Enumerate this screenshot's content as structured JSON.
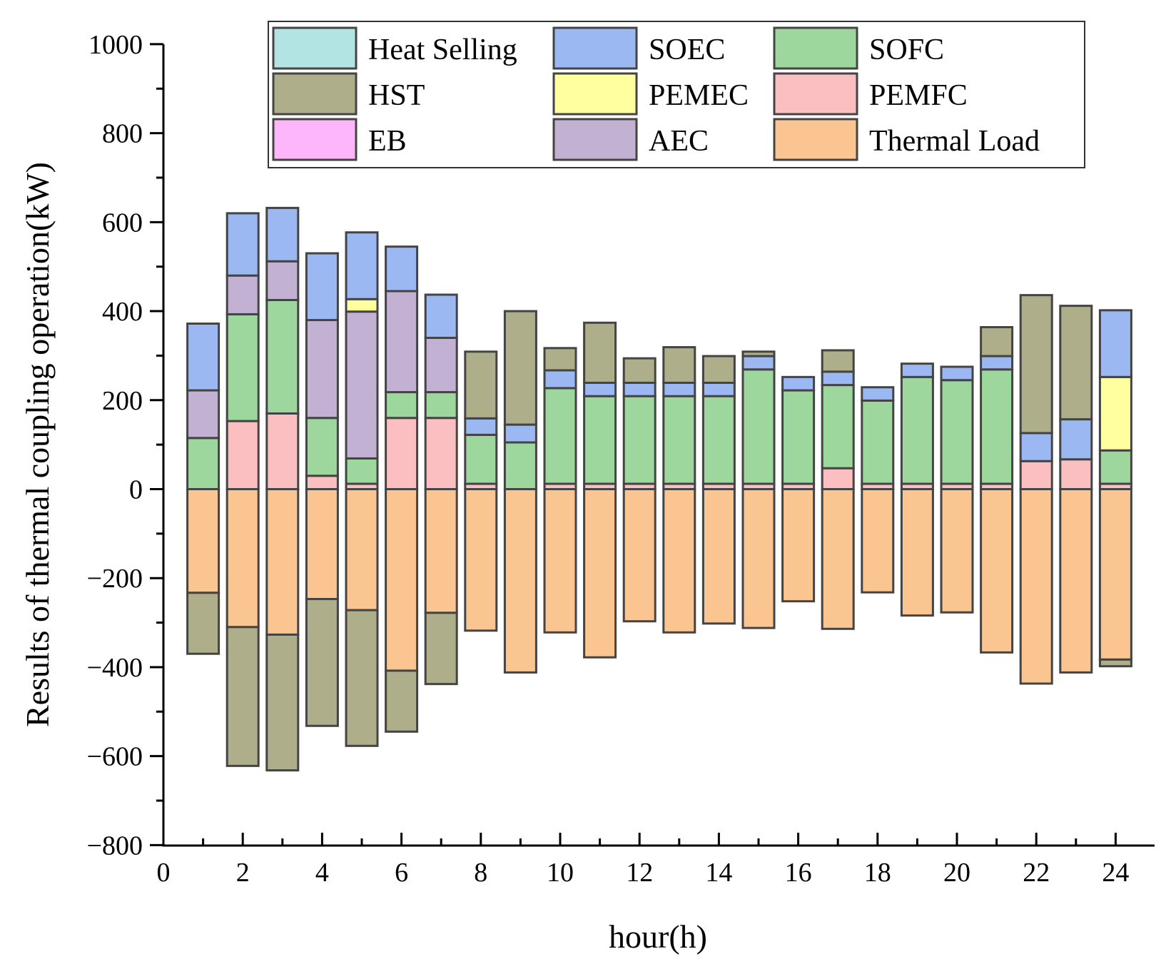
{
  "chart_data": {
    "type": "bar",
    "stacked": true,
    "title": "",
    "xlabel": "hour(h)",
    "ylabel": "Results of  thermal coupling operation(kW)",
    "xlim": [
      0,
      25
    ],
    "ylim": [
      -800,
      1000
    ],
    "x_ticks": [
      0,
      2,
      4,
      6,
      8,
      10,
      12,
      14,
      16,
      18,
      20,
      22,
      24
    ],
    "y_ticks": [
      -800,
      -600,
      -400,
      -200,
      0,
      200,
      400,
      600,
      800,
      1000
    ],
    "y_tick_labels": [
      "−800",
      "−600",
      "−400",
      "−200",
      "0",
      "200",
      "400",
      "600",
      "800",
      "1000"
    ],
    "legend_position": "top",
    "categories": [
      1,
      2,
      3,
      4,
      5,
      6,
      7,
      8,
      9,
      10,
      11,
      12,
      13,
      14,
      15,
      16,
      17,
      18,
      19,
      20,
      21,
      22,
      23,
      24
    ],
    "series": [
      {
        "name": "Heat Selling",
        "color": "#b3e4e4",
        "values": [
          0,
          0,
          0,
          0,
          0,
          0,
          0,
          0,
          0,
          0,
          0,
          0,
          0,
          0,
          0,
          0,
          0,
          0,
          0,
          0,
          0,
          0,
          0,
          0
        ]
      },
      {
        "name": "HST",
        "color": "#aeae8a",
        "values": [
          -137,
          -312,
          -305,
          -285,
          -305,
          -137,
          -160,
          150,
          255,
          50,
          135,
          55,
          80,
          60,
          10,
          0,
          48,
          0,
          0,
          0,
          65,
          310,
          255,
          -15
        ]
      },
      {
        "name": "EB",
        "color": "#fdb6fa",
        "values": [
          0,
          0,
          0,
          0,
          0,
          0,
          0,
          0,
          0,
          0,
          0,
          0,
          0,
          0,
          0,
          0,
          0,
          0,
          0,
          0,
          0,
          0,
          0,
          0
        ]
      },
      {
        "name": "SOEC",
        "color": "#9cb8f2",
        "values": [
          150,
          140,
          120,
          150,
          150,
          100,
          97,
          37,
          40,
          40,
          30,
          30,
          30,
          30,
          30,
          30,
          30,
          30,
          30,
          30,
          30,
          63,
          90,
          150
        ]
      },
      {
        "name": "PEMEC",
        "color": "#ffff9f",
        "values": [
          0,
          0,
          0,
          0,
          28,
          0,
          0,
          0,
          0,
          0,
          0,
          0,
          0,
          0,
          0,
          0,
          0,
          0,
          0,
          0,
          0,
          0,
          0,
          165
        ]
      },
      {
        "name": "AEC",
        "color": "#c3b1d4",
        "values": [
          107,
          87,
          87,
          220,
          330,
          227,
          122,
          0,
          0,
          0,
          0,
          0,
          0,
          0,
          0,
          0,
          0,
          0,
          0,
          0,
          0,
          0,
          0,
          0
        ]
      },
      {
        "name": "SOFC",
        "color": "#9dd79d",
        "values": [
          115,
          240,
          255,
          130,
          57,
          58,
          58,
          110,
          105,
          215,
          197,
          197,
          197,
          197,
          257,
          210,
          187,
          187,
          240,
          233,
          257,
          0,
          0,
          75
        ]
      },
      {
        "name": "PEMFC",
        "color": "#fbbfc1",
        "values": [
          0,
          153,
          170,
          30,
          12,
          160,
          160,
          12,
          0,
          12,
          12,
          12,
          12,
          12,
          12,
          12,
          47,
          12,
          12,
          12,
          12,
          63,
          67,
          12
        ]
      },
      {
        "name": "Thermal Load",
        "color": "#fbc591",
        "values": [
          -233,
          -310,
          -327,
          -247,
          -272,
          -408,
          -278,
          -318,
          -412,
          -322,
          -378,
          -297,
          -322,
          -302,
          -312,
          -252,
          -314,
          -232,
          -284,
          -277,
          -367,
          -437,
          -412,
          -383
        ]
      }
    ],
    "stack_order": [
      "Thermal Load",
      "PEMFC",
      "SOFC",
      "AEC",
      "PEMEC",
      "SOEC",
      "EB",
      "HST",
      "Heat Selling"
    ]
  }
}
